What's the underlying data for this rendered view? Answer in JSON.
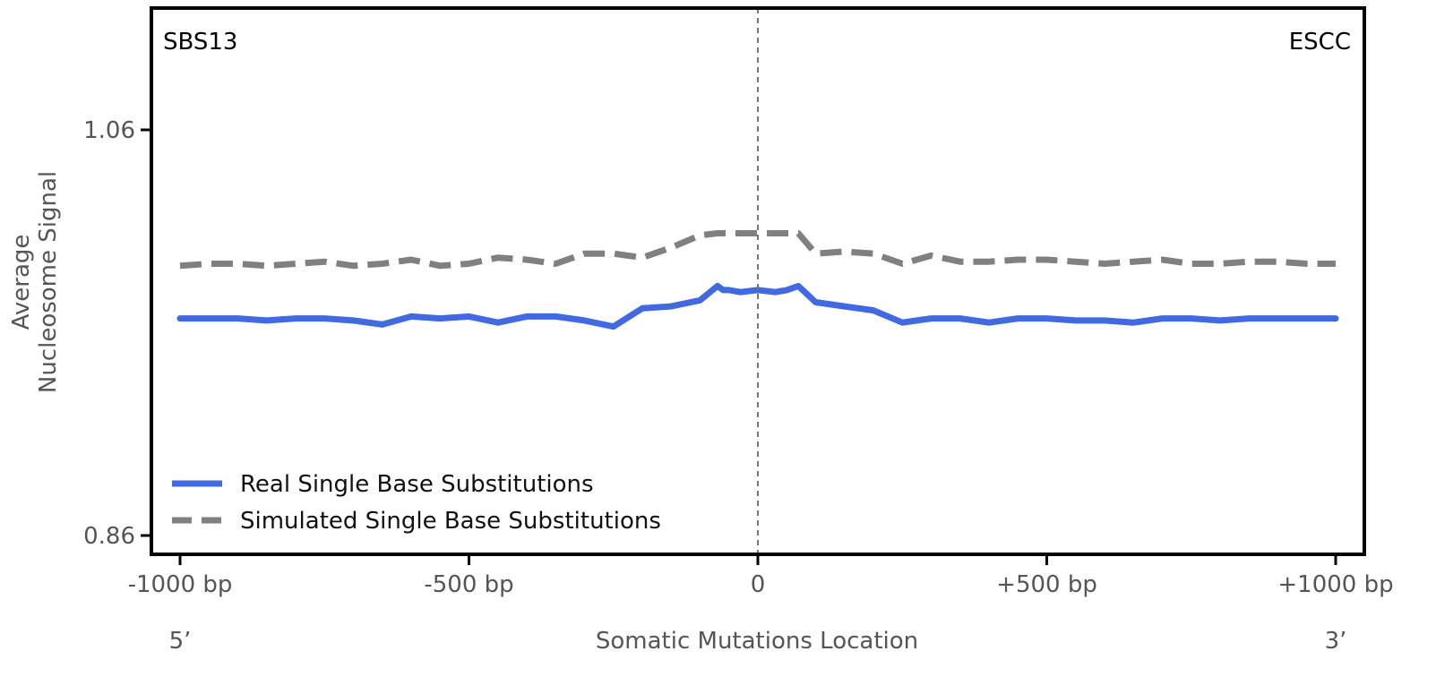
{
  "chart_data": {
    "type": "line",
    "signature_label": "SBS13",
    "cancer_label": "ESCC",
    "ylabel_line1": "Average",
    "ylabel_line2": "Nucleosome Signal",
    "xlabel": "Somatic Mutations Location",
    "end5_label": "5’",
    "end3_label": "3’",
    "xlim": [
      -1000,
      1000
    ],
    "ylim": [
      0.86,
      1.06
    ],
    "y_ticks": [
      {
        "value": 1.06,
        "label": "1.06"
      },
      {
        "value": 0.86,
        "label": "0.86"
      }
    ],
    "x_ticks": [
      {
        "value": -1000,
        "label": "-1000 bp"
      },
      {
        "value": -500,
        "label": "-500 bp"
      },
      {
        "value": 0,
        "label": "0"
      },
      {
        "value": 500,
        "label": "+500 bp"
      },
      {
        "value": 1000,
        "label": "+1000 bp"
      }
    ],
    "vline_x": 0,
    "legend_position": "lower-left",
    "x": [
      -1000,
      -950,
      -900,
      -850,
      -800,
      -750,
      -700,
      -650,
      -600,
      -550,
      -500,
      -450,
      -400,
      -350,
      -300,
      -250,
      -200,
      -150,
      -100,
      -70,
      -60,
      -50,
      -30,
      0,
      30,
      50,
      60,
      70,
      100,
      150,
      200,
      250,
      300,
      350,
      400,
      450,
      500,
      550,
      600,
      650,
      700,
      750,
      800,
      850,
      900,
      950,
      1000
    ],
    "series": [
      {
        "name": "Real Single Base Substitutions",
        "color": "#4169E1",
        "style": "solid",
        "values": [
          0.967,
          0.967,
          0.967,
          0.966,
          0.967,
          0.967,
          0.966,
          0.964,
          0.968,
          0.967,
          0.968,
          0.965,
          0.968,
          0.968,
          0.966,
          0.963,
          0.972,
          0.973,
          0.976,
          0.983,
          0.981,
          0.981,
          0.98,
          0.981,
          0.98,
          0.981,
          0.982,
          0.983,
          0.975,
          0.973,
          0.971,
          0.965,
          0.967,
          0.967,
          0.965,
          0.967,
          0.967,
          0.966,
          0.966,
          0.965,
          0.967,
          0.967,
          0.966,
          0.967,
          0.967,
          0.967,
          0.967
        ]
      },
      {
        "name": "Simulated Single Base Substitutions",
        "color": "#808080",
        "style": "dashed",
        "values": [
          0.993,
          0.994,
          0.994,
          0.993,
          0.994,
          0.995,
          0.993,
          0.994,
          0.996,
          0.993,
          0.994,
          0.997,
          0.996,
          0.994,
          0.999,
          0.999,
          0.997,
          1.002,
          1.008,
          1.009,
          1.009,
          1.009,
          1.009,
          1.009,
          1.009,
          1.009,
          1.009,
          1.009,
          0.999,
          1.0,
          0.999,
          0.994,
          0.998,
          0.995,
          0.995,
          0.996,
          0.996,
          0.995,
          0.994,
          0.995,
          0.996,
          0.994,
          0.994,
          0.995,
          0.995,
          0.994,
          0.994
        ]
      }
    ]
  }
}
